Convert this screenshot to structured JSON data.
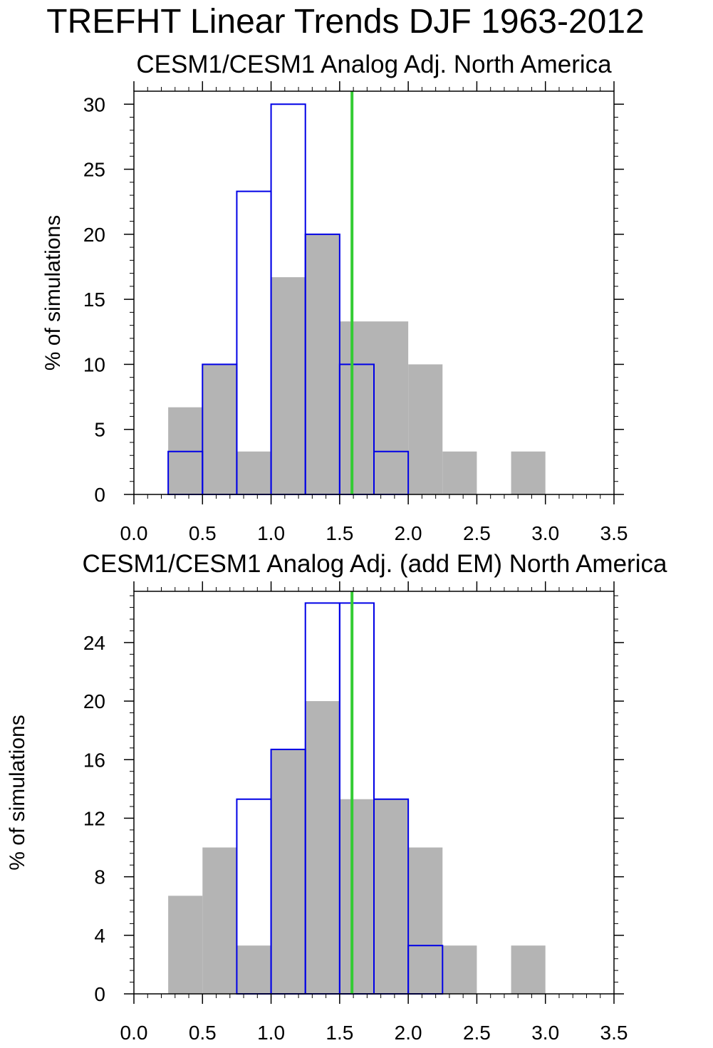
{
  "figure": {
    "title": "TREFHT Linear Trends DJF 1963-2012"
  },
  "colors": {
    "filled_bars": "#b4b4b4",
    "outline_bars": "#0000e6",
    "observed_line": "#33cc33",
    "frame": "#000000"
  },
  "chart_data": [
    {
      "type": "bar",
      "title": "CESM1/CESM1 Analog Adj. North America",
      "xlabel": "",
      "ylabel": "% of simulations",
      "xlim": [
        0.0,
        3.5
      ],
      "ylim": [
        0,
        31
      ],
      "xticks": [
        "0.0",
        "0.5",
        "1.0",
        "1.5",
        "2.0",
        "2.5",
        "3.0",
        "3.5"
      ],
      "yticks": [
        "0",
        "5",
        "10",
        "15",
        "20",
        "25",
        "30"
      ],
      "bin_edges": [
        0.25,
        0.5,
        0.75,
        1.0,
        1.25,
        1.5,
        1.75,
        2.0,
        2.25,
        2.5,
        2.75,
        3.0
      ],
      "series": [
        {
          "name": "filled",
          "style": "filled",
          "values": [
            6.7,
            10.0,
            3.3,
            16.7,
            20.0,
            13.3,
            13.3,
            10.0,
            3.3,
            0.0,
            3.3
          ]
        },
        {
          "name": "outline",
          "style": "outline",
          "values": [
            3.3,
            10.0,
            23.3,
            30.0,
            20.0,
            10.0,
            3.3,
            0.0,
            0.0,
            0.0,
            0.0
          ]
        }
      ],
      "reference_line_x": 1.59
    },
    {
      "type": "bar",
      "title": "CESM1/CESM1 Analog Adj. (add EM) North America",
      "xlabel": "",
      "ylabel": "% of simulations",
      "xlim": [
        0.0,
        3.5
      ],
      "ylim": [
        0,
        27.5
      ],
      "xticks": [
        "0.0",
        "0.5",
        "1.0",
        "1.5",
        "2.0",
        "2.5",
        "3.0",
        "3.5"
      ],
      "yticks": [
        "0",
        "4",
        "8",
        "12",
        "16",
        "20",
        "24"
      ],
      "bin_edges": [
        0.25,
        0.5,
        0.75,
        1.0,
        1.25,
        1.5,
        1.75,
        2.0,
        2.25,
        2.5,
        2.75,
        3.0
      ],
      "series": [
        {
          "name": "filled",
          "style": "filled",
          "values": [
            6.7,
            10.0,
            3.3,
            16.7,
            20.0,
            13.3,
            13.3,
            10.0,
            3.3,
            0.0,
            3.3
          ]
        },
        {
          "name": "outline",
          "style": "outline",
          "values": [
            0.0,
            0.0,
            13.3,
            16.7,
            26.7,
            26.7,
            13.3,
            3.3,
            0.0,
            0.0,
            0.0
          ]
        }
      ],
      "reference_line_x": 1.59
    }
  ]
}
